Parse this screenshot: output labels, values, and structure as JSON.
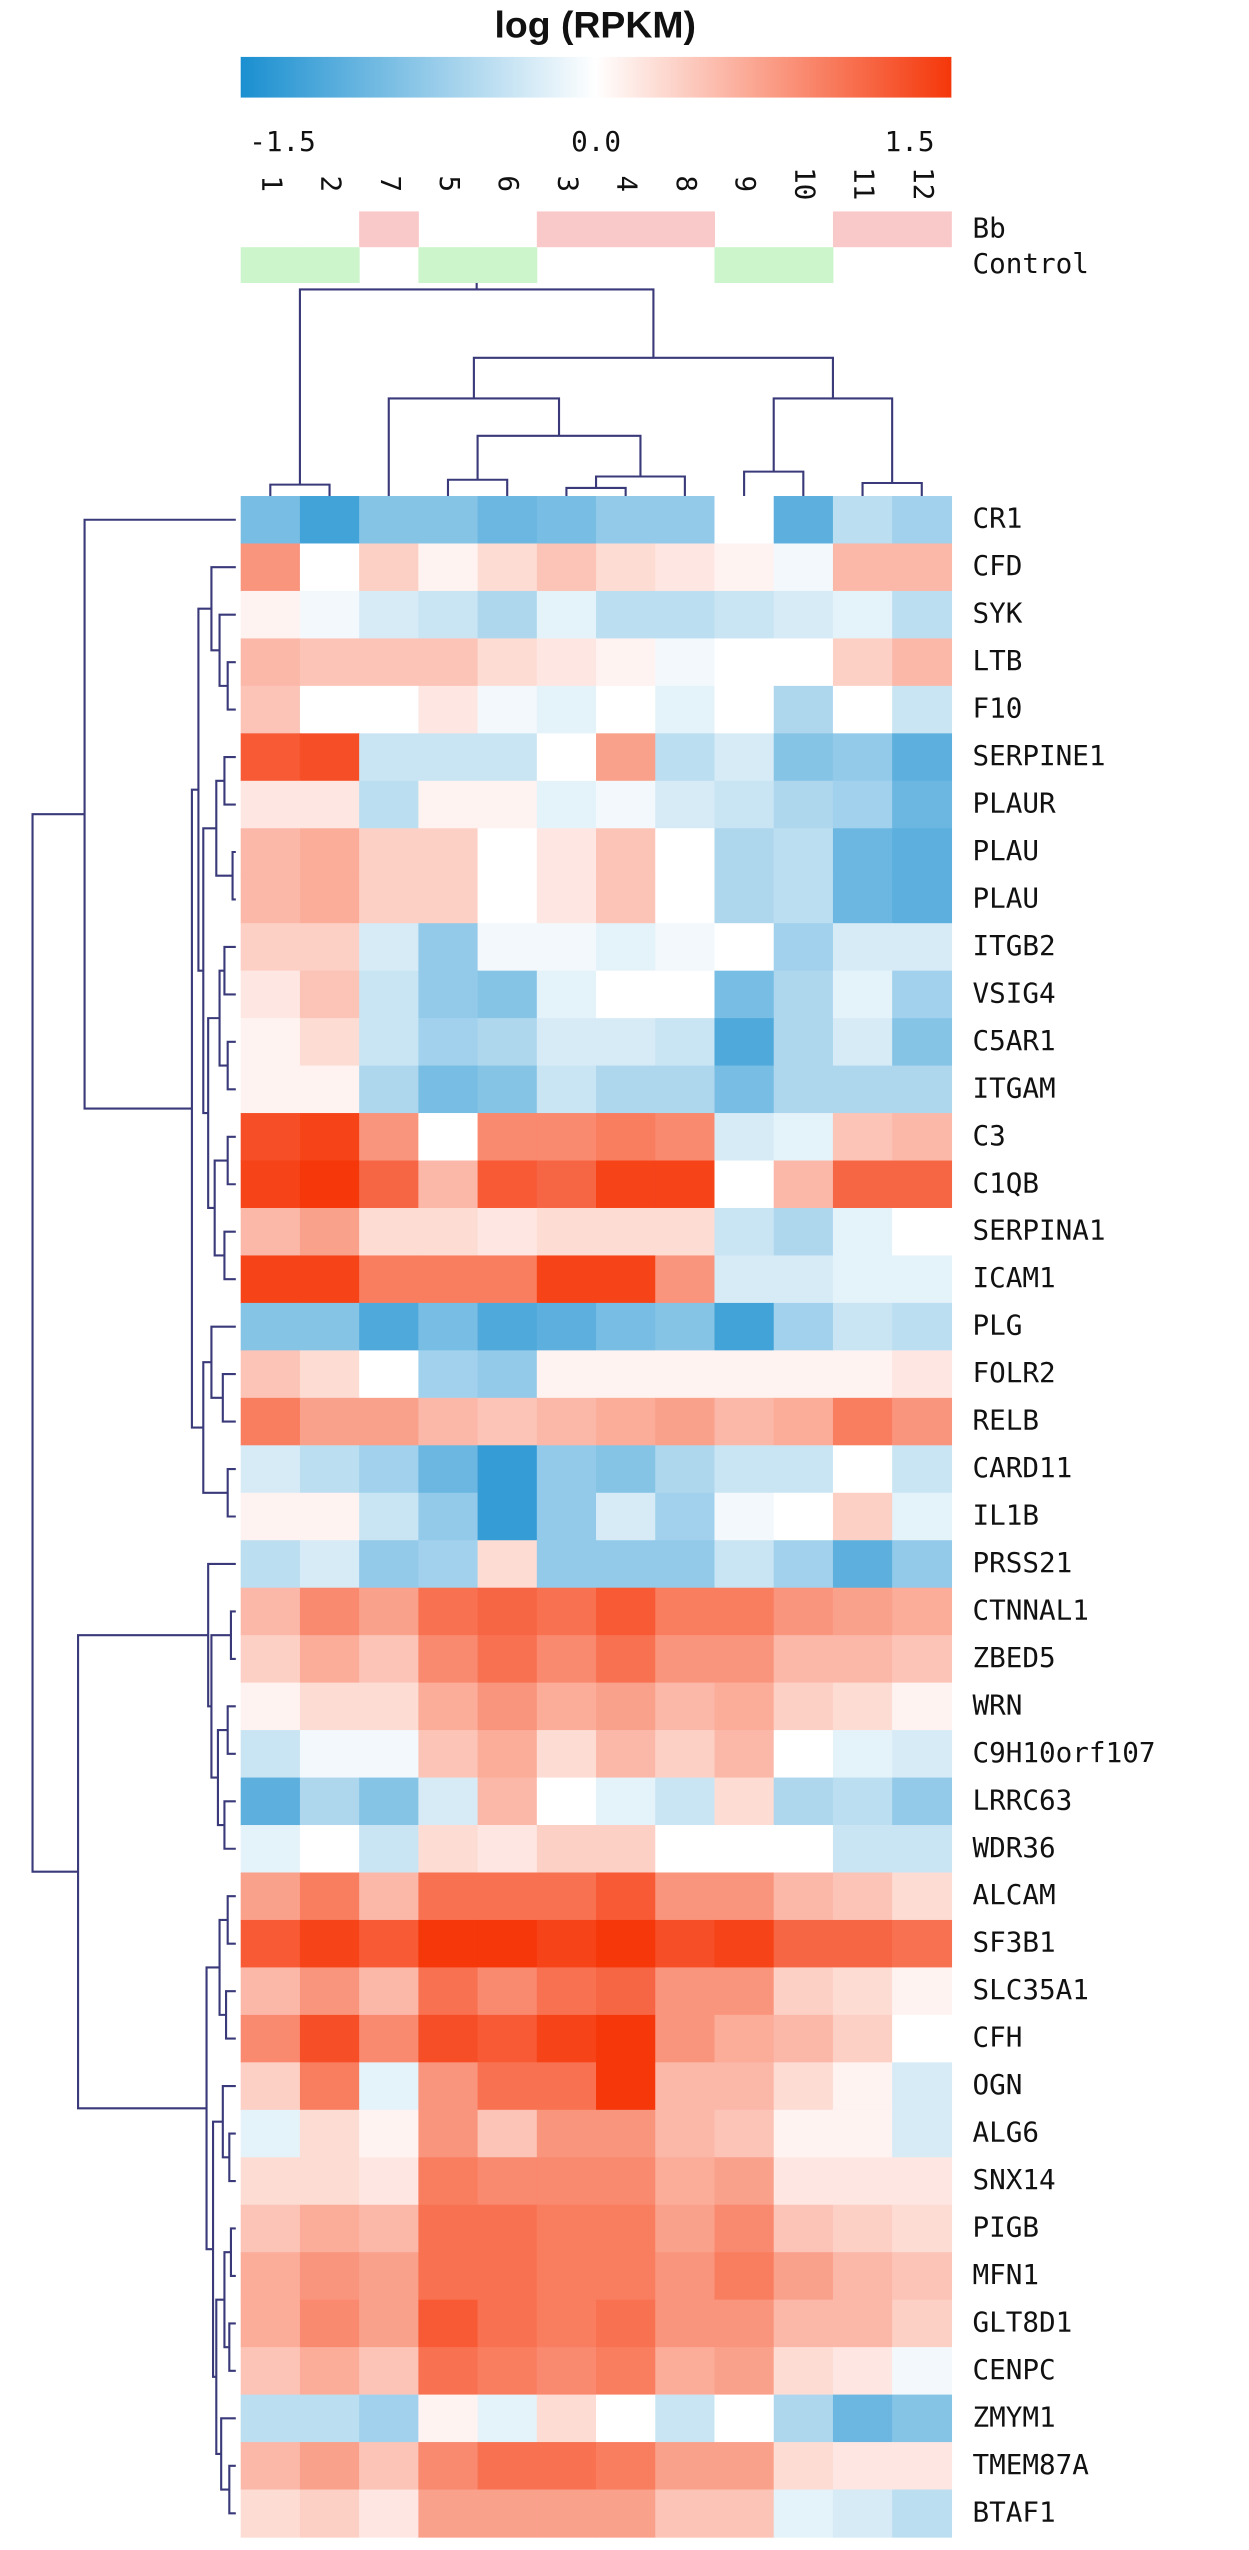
{
  "chart_data": {
    "type": "heatmap",
    "title": "log (RPKM)",
    "categories": [
      "1",
      "2",
      "7",
      "5",
      "6",
      "3",
      "4",
      "8",
      "9",
      "10",
      "11",
      "12"
    ],
    "rows": [
      "CR1",
      "CFD",
      "SYK",
      "LTB",
      "F10",
      "SERPINE1",
      "PLAUR",
      "PLAU",
      "PLAU",
      "ITGB2",
      "VSIG4",
      "C5AR1",
      "ITGAM",
      "C3",
      "C1QB",
      "SERPINA1",
      "ICAM1",
      "PLG",
      "FOLR2",
      "RELB",
      "CARD11",
      "IL1B",
      "PRSS21",
      "CTNNAL1",
      "ZBED5",
      "WRN",
      "C9H10orf107",
      "LRRC63",
      "WDR36",
      "ALCAM",
      "SF3B1",
      "SLC35A1",
      "CFH",
      "OGN",
      "ALG6",
      "SNX14",
      "PIGB",
      "MFN1",
      "GLT8D1",
      "CENPC",
      "ZMYM1",
      "TMEM87A",
      "BTAF1"
    ],
    "z": [
      [
        -1.0,
        -1.4,
        -0.9,
        -0.9,
        -1.1,
        -1.0,
        -0.8,
        -0.8,
        0,
        -1.2,
        -0.5,
        -0.7
      ],
      [
        0.9,
        0,
        0.4,
        0.1,
        0.3,
        0.5,
        0.3,
        0.2,
        0.1,
        -0.1,
        0.6,
        0.6
      ],
      [
        0.1,
        -0.1,
        -0.3,
        -0.4,
        -0.6,
        -0.2,
        -0.5,
        -0.5,
        -0.4,
        -0.3,
        -0.2,
        -0.5
      ],
      [
        0.6,
        0.5,
        0.5,
        0.5,
        0.3,
        0.2,
        0.1,
        -0.1,
        0,
        0,
        0.4,
        0.6
      ],
      [
        0.5,
        0,
        0,
        0.2,
        -0.1,
        -0.2,
        0,
        -0.2,
        0,
        -0.6,
        0,
        -0.4
      ],
      [
        1.4,
        1.5,
        -0.4,
        -0.4,
        -0.4,
        0,
        0.8,
        -0.5,
        -0.3,
        -0.9,
        -0.8,
        -1.2
      ],
      [
        0.2,
        0.2,
        -0.5,
        0.1,
        0.1,
        -0.2,
        -0.1,
        -0.3,
        -0.4,
        -0.6,
        -0.7,
        -1.1
      ],
      [
        0.6,
        0.7,
        0.4,
        0.4,
        0,
        0.2,
        0.5,
        0,
        -0.6,
        -0.5,
        -1.1,
        -1.2
      ],
      [
        0.6,
        0.7,
        0.4,
        0.4,
        0,
        0.2,
        0.5,
        0,
        -0.6,
        -0.5,
        -1.1,
        -1.2
      ],
      [
        0.4,
        0.4,
        -0.3,
        -0.8,
        -0.1,
        -0.1,
        -0.2,
        -0.1,
        0,
        -0.7,
        -0.3,
        -0.3
      ],
      [
        0.2,
        0.5,
        -0.4,
        -0.8,
        -0.9,
        -0.2,
        0,
        0,
        -1.0,
        -0.6,
        -0.2,
        -0.7
      ],
      [
        0.1,
        0.3,
        -0.4,
        -0.7,
        -0.6,
        -0.3,
        -0.3,
        -0.4,
        -1.3,
        -0.6,
        -0.3,
        -0.9
      ],
      [
        0.1,
        0.1,
        -0.6,
        -1.0,
        -0.9,
        -0.4,
        -0.6,
        -0.6,
        -1.0,
        -0.6,
        -0.6,
        -0.6
      ],
      [
        1.5,
        1.6,
        0.9,
        0,
        1.0,
        1.0,
        1.1,
        1.0,
        -0.3,
        -0.2,
        0.5,
        0.6
      ],
      [
        1.6,
        1.7,
        1.3,
        0.6,
        1.4,
        1.3,
        1.6,
        1.6,
        0,
        0.6,
        1.3,
        1.3
      ],
      [
        0.6,
        0.8,
        0.3,
        0.3,
        0.2,
        0.3,
        0.3,
        0.3,
        -0.4,
        -0.6,
        -0.2,
        0
      ],
      [
        1.6,
        1.6,
        1.1,
        1.1,
        1.1,
        1.6,
        1.6,
        0.9,
        -0.3,
        -0.3,
        -0.2,
        -0.2
      ],
      [
        -0.9,
        -0.9,
        -1.3,
        -1.0,
        -1.3,
        -1.2,
        -1.0,
        -0.9,
        -1.4,
        -0.7,
        -0.4,
        -0.5
      ],
      [
        0.5,
        0.3,
        0,
        -0.7,
        -0.8,
        0.1,
        0.1,
        0.1,
        0.1,
        0.1,
        0.1,
        0.2
      ],
      [
        1.1,
        0.8,
        0.8,
        0.6,
        0.5,
        0.6,
        0.7,
        0.8,
        0.6,
        0.7,
        1.1,
        0.9
      ],
      [
        -0.3,
        -0.5,
        -0.7,
        -1.1,
        -1.5,
        -0.8,
        -0.9,
        -0.6,
        -0.4,
        -0.4,
        0,
        -0.4
      ],
      [
        0.1,
        0.1,
        -0.4,
        -0.8,
        -1.5,
        -0.8,
        -0.3,
        -0.7,
        -0.1,
        0,
        0.4,
        -0.2
      ],
      [
        -0.5,
        -0.3,
        -0.8,
        -0.7,
        0.3,
        -0.8,
        -0.8,
        -0.8,
        -0.4,
        -0.7,
        -1.2,
        -0.8
      ],
      [
        0.6,
        1.0,
        0.8,
        1.2,
        1.3,
        1.2,
        1.4,
        1.1,
        1.1,
        0.9,
        0.8,
        0.7
      ],
      [
        0.4,
        0.7,
        0.5,
        1.0,
        1.2,
        1.0,
        1.2,
        0.9,
        0.9,
        0.6,
        0.6,
        0.5
      ],
      [
        0.1,
        0.3,
        0.3,
        0.7,
        0.9,
        0.7,
        0.8,
        0.6,
        0.7,
        0.4,
        0.3,
        0.1
      ],
      [
        -0.4,
        -0.1,
        -0.1,
        0.5,
        0.7,
        0.3,
        0.6,
        0.4,
        0.6,
        0,
        -0.2,
        -0.3
      ],
      [
        -1.2,
        -0.6,
        -0.9,
        -0.3,
        0.6,
        0,
        -0.2,
        -0.4,
        0.3,
        -0.6,
        -0.5,
        -0.8
      ],
      [
        -0.2,
        0,
        -0.4,
        0.3,
        0.2,
        0.4,
        0.4,
        0,
        0,
        0,
        -0.4,
        -0.4
      ],
      [
        0.8,
        1.1,
        0.6,
        1.2,
        1.2,
        1.2,
        1.4,
        0.9,
        0.9,
        0.6,
        0.5,
        0.3
      ],
      [
        1.4,
        1.6,
        1.4,
        1.7,
        1.7,
        1.6,
        1.7,
        1.5,
        1.6,
        1.3,
        1.3,
        1.2
      ],
      [
        0.6,
        0.9,
        0.6,
        1.2,
        1.0,
        1.2,
        1.3,
        0.9,
        0.9,
        0.4,
        0.3,
        0.1
      ],
      [
        1.0,
        1.5,
        1.0,
        1.5,
        1.4,
        1.6,
        1.7,
        0.9,
        0.7,
        0.6,
        0.4,
        0
      ],
      [
        0.4,
        1.1,
        -0.2,
        0.9,
        1.2,
        1.2,
        1.7,
        0.6,
        0.6,
        0.3,
        0.1,
        -0.3
      ],
      [
        -0.2,
        0.3,
        0.1,
        0.9,
        0.5,
        0.9,
        0.9,
        0.6,
        0.5,
        0.1,
        0.1,
        -0.3
      ],
      [
        0.3,
        0.3,
        0.2,
        1.1,
        1.0,
        1.0,
        1.0,
        0.7,
        0.8,
        0.2,
        0.2,
        0.2
      ],
      [
        0.5,
        0.7,
        0.6,
        1.2,
        1.2,
        1.1,
        1.1,
        0.8,
        1.0,
        0.5,
        0.4,
        0.3
      ],
      [
        0.7,
        0.9,
        0.8,
        1.2,
        1.2,
        1.1,
        1.1,
        0.9,
        1.1,
        0.8,
        0.6,
        0.5
      ],
      [
        0.7,
        1.0,
        0.8,
        1.4,
        1.2,
        1.1,
        1.2,
        0.9,
        0.9,
        0.6,
        0.6,
        0.4
      ],
      [
        0.5,
        0.7,
        0.5,
        1.2,
        1.1,
        1.0,
        1.1,
        0.7,
        0.8,
        0.3,
        0.2,
        -0.1
      ],
      [
        -0.5,
        -0.5,
        -0.7,
        0.1,
        -0.2,
        0.3,
        0,
        -0.4,
        0,
        -0.6,
        -1.1,
        -0.9
      ],
      [
        0.6,
        0.8,
        0.5,
        1.0,
        1.2,
        1.2,
        1.1,
        0.8,
        0.8,
        0.3,
        0.2,
        0.2
      ],
      [
        0.3,
        0.4,
        0.2,
        0.8,
        0.8,
        0.8,
        0.8,
        0.5,
        0.5,
        -0.2,
        -0.3,
        -0.5
      ]
    ],
    "clim": [
      -1.7,
      1.7
    ],
    "cticks": [
      -1.5,
      {
        "value": 0,
        "label": "0.0"
      },
      1.5
    ],
    "colorscale": [
      "#1a8fd0",
      "#ffffff",
      "#f5370a"
    ],
    "annotations": [
      {
        "name": "Bb",
        "color": "#f9c9c9",
        "flags": [
          false,
          false,
          true,
          false,
          false,
          true,
          true,
          true,
          false,
          false,
          true,
          true
        ]
      },
      {
        "name": "Control",
        "color": "#ccf5cc",
        "flags": [
          true,
          true,
          false,
          true,
          true,
          false,
          false,
          false,
          true,
          true,
          false,
          false
        ]
      }
    ]
  }
}
